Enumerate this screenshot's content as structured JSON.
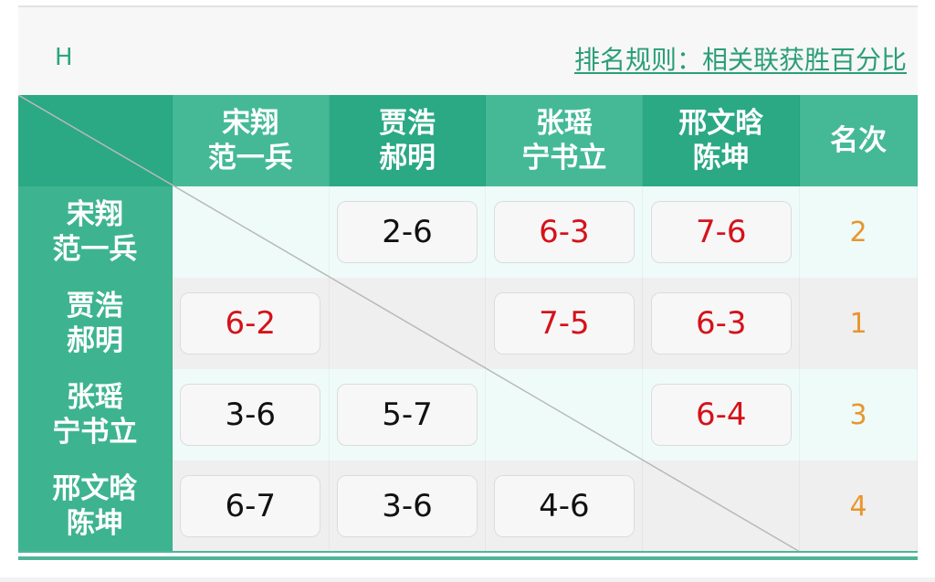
{
  "group_label": "H",
  "ranking_rule_link": "排名规则：相关联获胜百分比",
  "colors": {
    "header_dark": "#2aa984",
    "header_light": "#45b996",
    "win": "#d5121a",
    "loss": "#111111",
    "rank": "#e8962e",
    "row_odd": "#eefbf9",
    "row_even": "#f0efef"
  },
  "columns": [
    {
      "line1": "宋翔",
      "line2": "范一兵"
    },
    {
      "line1": "贾浩",
      "line2": "郝明"
    },
    {
      "line1": "张瑶",
      "line2": "宁书立"
    },
    {
      "line1": "邢文晗",
      "line2": "陈坤"
    }
  ],
  "rank_header": "名次",
  "rows": [
    {
      "line1": "宋翔",
      "line2": "范一兵",
      "scores": [
        null,
        {
          "v": "2-6",
          "win": false
        },
        {
          "v": "6-3",
          "win": true
        },
        {
          "v": "7-6",
          "win": true
        }
      ],
      "rank": "2"
    },
    {
      "line1": "贾浩",
      "line2": "郝明",
      "scores": [
        {
          "v": "6-2",
          "win": true
        },
        null,
        {
          "v": "7-5",
          "win": true
        },
        {
          "v": "6-3",
          "win": true
        }
      ],
      "rank": "1"
    },
    {
      "line1": "张瑶",
      "line2": "宁书立",
      "scores": [
        {
          "v": "3-6",
          "win": false
        },
        {
          "v": "5-7",
          "win": false
        },
        null,
        {
          "v": "6-4",
          "win": true
        }
      ],
      "rank": "3"
    },
    {
      "line1": "邢文晗",
      "line2": "陈坤",
      "scores": [
        {
          "v": "6-7",
          "win": false
        },
        {
          "v": "3-6",
          "win": false
        },
        {
          "v": "4-6",
          "win": false
        },
        null
      ],
      "rank": "4"
    }
  ]
}
